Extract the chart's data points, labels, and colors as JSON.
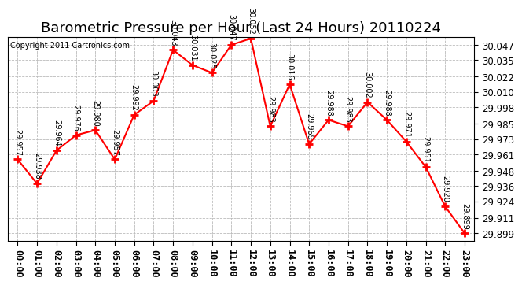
{
  "title": "Barometric Pressure per Hour (Last 24 Hours) 20110224",
  "copyright": "Copyright 2011 Cartronics.com",
  "hours": [
    "00:00",
    "01:00",
    "02:00",
    "03:00",
    "04:00",
    "05:00",
    "06:00",
    "07:00",
    "08:00",
    "09:00",
    "10:00",
    "11:00",
    "12:00",
    "13:00",
    "14:00",
    "15:00",
    "16:00",
    "17:00",
    "18:00",
    "19:00",
    "20:00",
    "21:00",
    "22:00",
    "23:00"
  ],
  "values": [
    29.957,
    29.938,
    29.964,
    29.976,
    29.98,
    29.957,
    29.992,
    30.003,
    30.043,
    30.031,
    30.025,
    30.047,
    30.052,
    29.983,
    30.016,
    29.969,
    29.988,
    29.983,
    30.002,
    29.988,
    29.971,
    29.951,
    29.92,
    29.899
  ],
  "line_color": "#ff0000",
  "marker_color": "#ff0000",
  "bg_color": "#ffffff",
  "grid_color": "#bbbbbb",
  "yticks": [
    29.899,
    29.911,
    29.924,
    29.936,
    29.948,
    29.961,
    29.973,
    29.985,
    29.998,
    30.01,
    30.022,
    30.035,
    30.047
  ],
  "ymin": 29.893,
  "ymax": 30.053,
  "title_fontsize": 13,
  "tick_fontsize": 8.5,
  "annot_fontsize": 7
}
